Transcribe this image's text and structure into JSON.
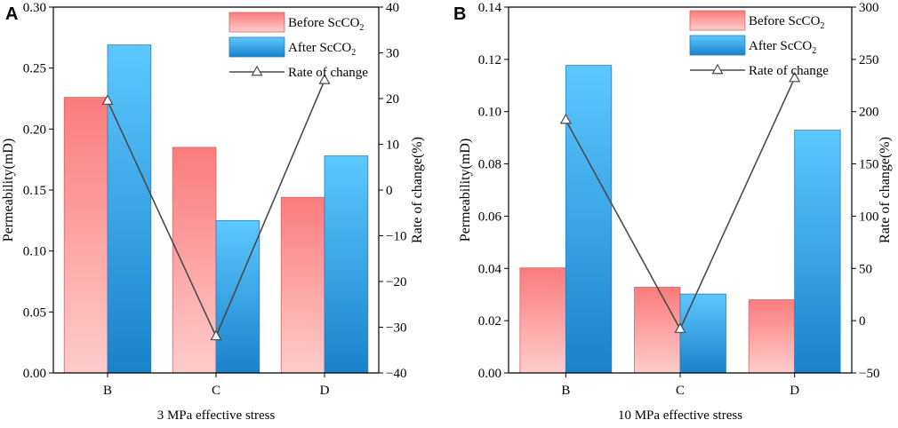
{
  "chart_data": [
    {
      "panel": "A",
      "type": "bar",
      "xlabel": "3 MPa effective stress",
      "ylabel": "Permeability(mD)",
      "y2label": "Rate of change(%)",
      "categories": [
        "B",
        "C",
        "D"
      ],
      "ylim": [
        0,
        0.3
      ],
      "yticks": [
        "0.00",
        "0.05",
        "0.10",
        "0.15",
        "0.20",
        "0.25",
        "0.30"
      ],
      "y2lim": [
        -40,
        40
      ],
      "y2ticks": [
        "-40",
        "-30",
        "-20",
        "-10",
        "0",
        "10",
        "20",
        "30",
        "40"
      ],
      "series": [
        {
          "name": "Before ScCO",
          "sub": "2",
          "values": [
            0.226,
            0.185,
            0.144
          ]
        },
        {
          "name": "After ScCO",
          "sub": "2",
          "values": [
            0.269,
            0.125,
            0.178
          ]
        }
      ],
      "line": {
        "name": "Rate of change",
        "values": [
          19.5,
          -32.0,
          24.0
        ]
      },
      "legend_position": "top-right"
    },
    {
      "panel": "B",
      "type": "bar",
      "xlabel": "10 MPa effective stress",
      "ylabel": "Permeability(mD)",
      "y2label": "Rate of change(%)",
      "categories": [
        "B",
        "C",
        "D"
      ],
      "ylim": [
        0,
        0.14
      ],
      "yticks": [
        "0.00",
        "0.02",
        "0.04",
        "0.06",
        "0.08",
        "0.10",
        "0.12",
        "0.14"
      ],
      "y2lim": [
        -50,
        300
      ],
      "y2ticks": [
        "-50",
        "0",
        "50",
        "100",
        "150",
        "200",
        "250",
        "300"
      ],
      "series": [
        {
          "name": "Before ScCO",
          "sub": "2",
          "values": [
            0.0402,
            0.0328,
            0.028
          ]
        },
        {
          "name": "After ScCO",
          "sub": "2",
          "values": [
            0.1177,
            0.0302,
            0.0929
          ]
        }
      ],
      "line": {
        "name": "Rate of change",
        "values": [
          192.0,
          -8.0,
          232.0
        ]
      },
      "legend_position": "top-right"
    }
  ],
  "colors": {
    "before_top": "#fb7b7b",
    "before_bottom": "#ffcccc",
    "before_edge": "#c86a6a",
    "after_top": "#5cc8ff",
    "after_bottom": "#1a82cc",
    "after_edge": "#2c7fb8",
    "line": "#4a4a4a",
    "marker_fill": "#ffffff"
  }
}
